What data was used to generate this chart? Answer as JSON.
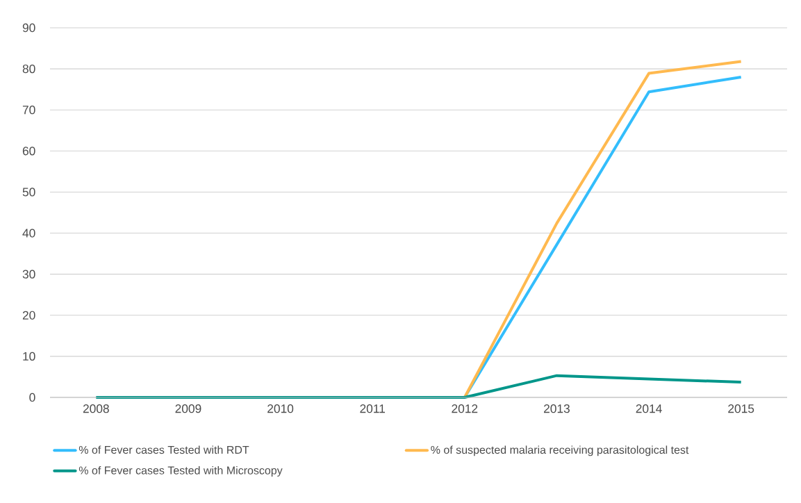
{
  "chart_data": {
    "type": "line",
    "categories": [
      "2008",
      "2009",
      "2010",
      "2011",
      "2012",
      "2013",
      "2014",
      "2015"
    ],
    "series": [
      {
        "name": "% of Fever cases Tested with RDT",
        "color": "#33bdfc",
        "values": [
          null,
          null,
          null,
          null,
          0,
          37.2,
          74.4,
          78.0
        ]
      },
      {
        "name": "% of suspected malaria receiving parasitological test",
        "color": "#ffb94f",
        "values": [
          null,
          null,
          null,
          null,
          0,
          42.4,
          78.9,
          81.8
        ]
      },
      {
        "name": "% of Fever cases Tested with Microscopy",
        "color": "#00968a",
        "values": [
          0,
          0,
          0,
          0,
          0,
          5.3,
          4.5,
          3.7
        ]
      }
    ],
    "ylim": [
      0,
      90
    ],
    "yticks": [
      0,
      10,
      20,
      30,
      40,
      50,
      60,
      70,
      80,
      90
    ],
    "grid": "y",
    "legend": "bottom",
    "marker": "none",
    "line_style": "solid"
  }
}
